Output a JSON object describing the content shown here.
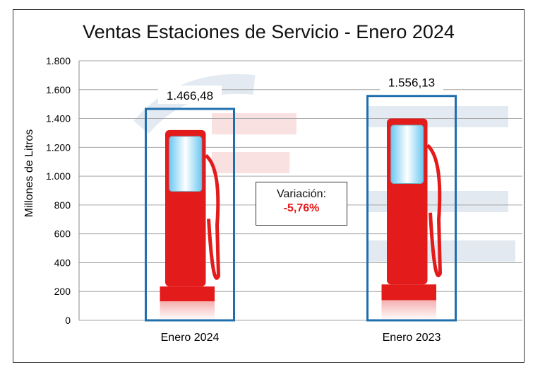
{
  "chart_data": {
    "type": "bar",
    "title": "Ventas Estaciones de Servicio - Enero 2024",
    "xlabel": "",
    "ylabel": "Millones de Litros",
    "categories": [
      "Enero 2024",
      "Enero 2023"
    ],
    "values": [
      1466.48,
      1556.13
    ],
    "value_labels": [
      "1.466,48",
      "1.556,13"
    ],
    "ylim": [
      0,
      1800
    ],
    "yticks": [
      0,
      200,
      400,
      600,
      800,
      1000,
      1200,
      1400,
      1600,
      1800
    ],
    "ytick_labels": [
      "0",
      "200",
      "400",
      "600",
      "800",
      "1.000",
      "1.200",
      "1.400",
      "1.600",
      "1.800"
    ],
    "grid": true,
    "legend": "none",
    "bar_style": "fuel-pump-icon",
    "colors": {
      "bar_border": "#1f6fad",
      "pump": "#e31b1b",
      "screen": "#7fd3f5",
      "grid": "#a6a6a6"
    },
    "annotation": {
      "label": "Variación:",
      "value": "-5,76%",
      "value_color": "#e41a1a"
    }
  }
}
